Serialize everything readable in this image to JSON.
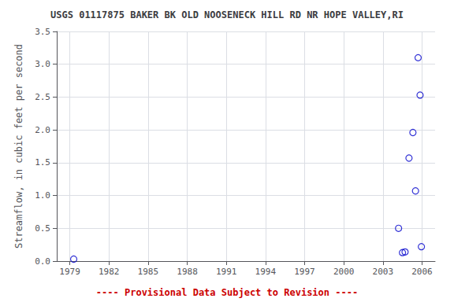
{
  "chart_data": {
    "type": "scatter",
    "title": "USGS 01117875 BAKER BK OLD NOOSENECK HILL RD NR HOPE VALLEY,RI",
    "ylabel": "Streamflow, in cubic feet per second",
    "x": [
      1979.3,
      2004.2,
      2004.5,
      2004.7,
      2005.0,
      2005.3,
      2005.5,
      2005.7,
      2005.85,
      2005.95
    ],
    "values": [
      0.03,
      0.5,
      0.13,
      0.14,
      1.57,
      1.96,
      1.07,
      3.1,
      2.53,
      0.22
    ],
    "color": "#0000cc",
    "marker": "open-circle",
    "xlim": [
      1978,
      2007
    ],
    "ylim": [
      0,
      3.5
    ],
    "xticks": [
      1979,
      1982,
      1985,
      1988,
      1991,
      1994,
      1997,
      2000,
      2003,
      2006
    ],
    "yticks": [
      {
        "value": 0,
        "label": "0.0"
      },
      0.5,
      {
        "value": 1,
        "label": "1.0"
      },
      1.5,
      {
        "value": 2,
        "label": "2.0"
      },
      2.5,
      {
        "value": 3,
        "label": "3.0"
      },
      3.5
    ],
    "grid": true,
    "annotations": [
      {
        "text": "---- Provisional Data Subject to Revision ----",
        "color": "#cc0000"
      }
    ]
  }
}
